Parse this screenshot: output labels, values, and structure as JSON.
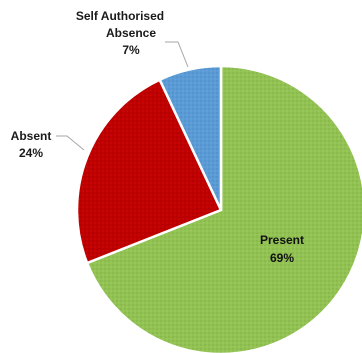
{
  "chart_data": {
    "type": "pie",
    "slices": [
      {
        "label": "Present",
        "percent_label": "69%",
        "value": 69,
        "color": "#92c254"
      },
      {
        "label": "Absent",
        "percent_label": "24%",
        "value": 24,
        "color": "#c00000"
      },
      {
        "label": "Self Authorised Absence",
        "label_lines": [
          "Self Authorised",
          "Absence"
        ],
        "percent_label": "7%",
        "value": 7,
        "color": "#5b9bd5"
      }
    ],
    "start": "12 o'clock",
    "direction": "clockwise",
    "legend": "none"
  }
}
